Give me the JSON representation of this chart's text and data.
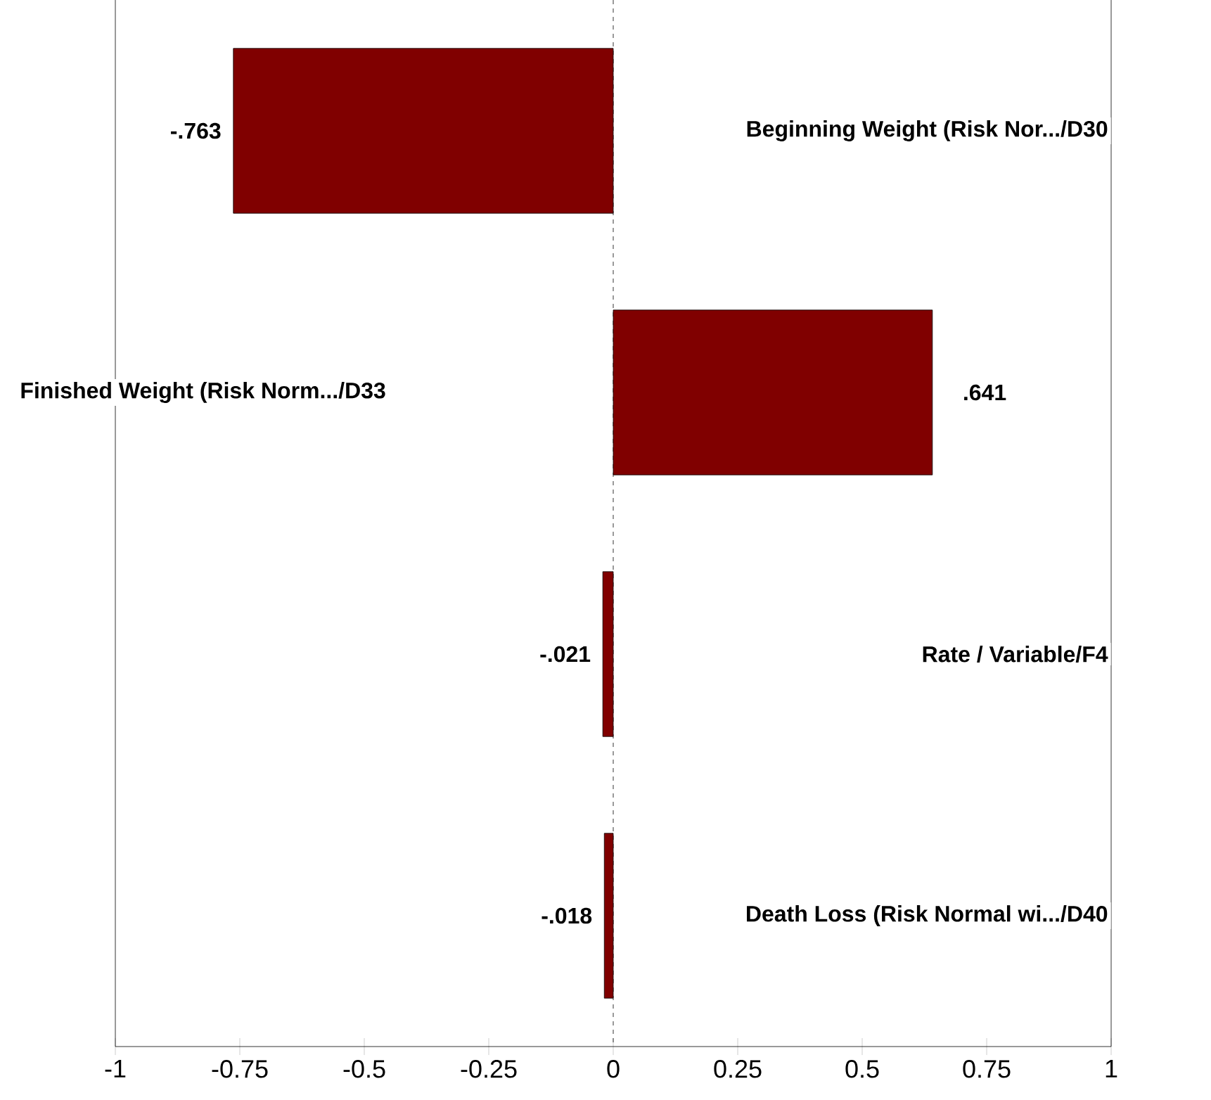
{
  "chart_data": {
    "type": "bar",
    "orientation": "horizontal",
    "categories": [
      "Beginning Weight (Risk Nor.../D30",
      "Finished Weight (Risk Norm.../D33",
      "Rate / Variable/F4",
      "Death Loss (Risk Normal wi.../D40"
    ],
    "values": [
      -0.763,
      0.641,
      -0.021,
      -0.018
    ],
    "value_labels": [
      "-.763",
      ".641",
      "-.021",
      "-.018"
    ],
    "color": "#800000",
    "xlim": [
      -1,
      1
    ],
    "xticks": [
      -1,
      -0.75,
      -0.5,
      -0.25,
      0,
      0.25,
      0.5,
      0.75,
      1
    ],
    "ref_lines": [
      {
        "axis": "x",
        "value": 0,
        "line_style": "dashed"
      }
    ]
  }
}
